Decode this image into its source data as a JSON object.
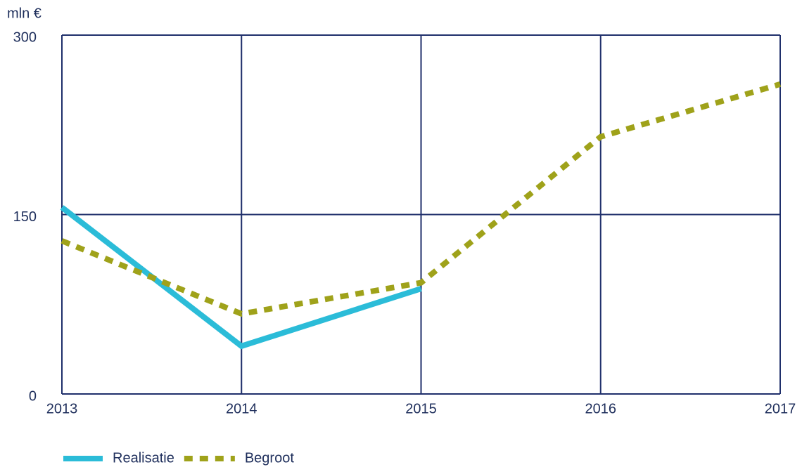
{
  "chart_data": {
    "type": "line",
    "y_label": "mln €",
    "x": [
      2013,
      2014,
      2015,
      2016,
      2017
    ],
    "xlim": [
      2013,
      2017
    ],
    "xticks": [
      2013,
      2014,
      2015,
      2016,
      2017
    ],
    "ylim": [
      0,
      300
    ],
    "yticks": [
      0,
      150,
      300
    ],
    "grid": true,
    "legend": "bottom-left",
    "series": [
      {
        "name": "Realisatie",
        "color": "#2bbcd8",
        "style": "solid",
        "values": [
          156,
          40,
          88,
          null,
          null
        ]
      },
      {
        "name": "Begroot",
        "color": "#9fa21a",
        "style": "dotted",
        "values": [
          128,
          67,
          93,
          215,
          259
        ]
      }
    ]
  }
}
